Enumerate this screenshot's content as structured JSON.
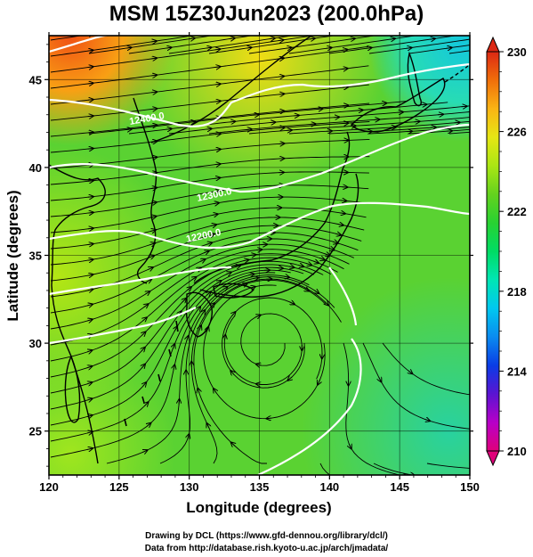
{
  "title": "MSM 15Z30Jun2023 (200.0hPa)",
  "axes": {
    "xlabel": "Longitude (degrees)",
    "ylabel": "Latitude  (degrees)",
    "xlim": [
      120,
      150
    ],
    "ylim": [
      22.5,
      47.5
    ],
    "xticks": [
      120,
      125,
      130,
      135,
      140,
      145,
      150
    ],
    "yticks": [
      25,
      30,
      35,
      40,
      45
    ],
    "grid": true
  },
  "colorbar": {
    "min": 210,
    "max": 230,
    "labels": [
      "230",
      "226",
      "222",
      "218",
      "214",
      "210"
    ],
    "colors": [
      "#e0007a",
      "#b800c8",
      "#5a14d2",
      "#0a3ce6",
      "#0a8cf0",
      "#00c8f0",
      "#00e6b4",
      "#00dc64",
      "#28d232",
      "#64d21e",
      "#aae614",
      "#e6e614",
      "#fab414",
      "#f06e0a",
      "#dc2814"
    ]
  },
  "contours": {
    "labels": [
      "12400.0",
      "12300.0",
      "12200.0"
    ],
    "color": "#ffffff"
  },
  "credits": [
    "Drawing by DCL (https://www.gfd-dennou.org/library/dcl/)",
    "Data from http://database.rish.kyoto-u.ac.jp/arch/jmadata/"
  ]
}
